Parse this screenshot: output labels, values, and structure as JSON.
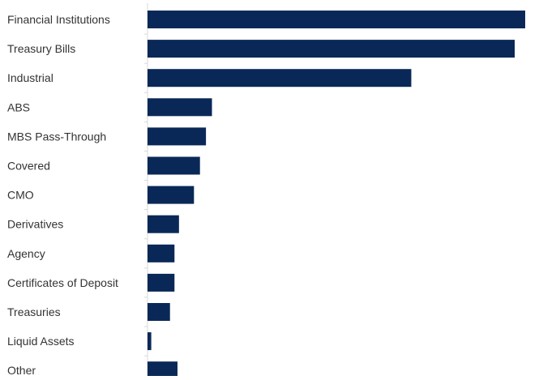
{
  "chart_data": {
    "type": "bar",
    "orientation": "horizontal",
    "title": "",
    "xlabel": "",
    "ylabel": "",
    "grid": false,
    "legend": "none",
    "bar_color": "#0a2857",
    "axis_color": "#d9d9d9",
    "label_color": "#333333",
    "categories": [
      "Financial Institutions",
      "Treasury Bills",
      "Industrial",
      "ABS",
      "MBS Pass-Through",
      "Covered",
      "CMO",
      "Derivatives",
      "Agency",
      "Certificates of Deposit",
      "Treasuries",
      "Liquid Assets",
      "Other"
    ],
    "values": [
      25.2,
      24.5,
      17.6,
      4.3,
      3.9,
      3.5,
      3.1,
      2.1,
      1.8,
      1.8,
      1.5,
      0.25,
      2.0
    ],
    "xlim": [
      0,
      25.2
    ]
  }
}
